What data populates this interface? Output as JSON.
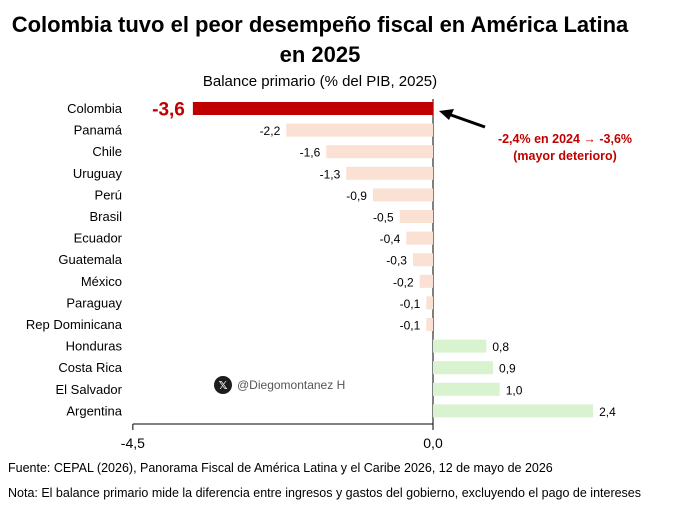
{
  "title": "Colombia tuvo el peor desempeño fiscal en América Latina en 2025",
  "subtitle": "Balance primario (% del PIB, 2025)",
  "chart_data": {
    "type": "bar",
    "orientation": "horizontal",
    "categories": [
      "Colombia",
      "Panamá",
      "Chile",
      "Uruguay",
      "Perú",
      "Brasil",
      "Ecuador",
      "Guatemala",
      "México",
      "Paraguay",
      "Rep Dominicana",
      "Honduras",
      "Costa Rica",
      "El Salvador",
      "Argentina"
    ],
    "values": [
      -3.6,
      -2.2,
      -1.6,
      -1.3,
      -0.9,
      -0.5,
      -0.4,
      -0.3,
      -0.2,
      -0.1,
      -0.1,
      0.8,
      0.9,
      1.0,
      2.4
    ],
    "value_labels": [
      "-3,6",
      "-2,2",
      "-1,6",
      "-1,3",
      "-0,9",
      "-0,5",
      "-0,4",
      "-0,3",
      "-0,2",
      "-0,1",
      "-0,1",
      "0,8",
      "0,9",
      "1,0",
      "2,4"
    ],
    "xlim": [
      -4.5,
      2.4
    ],
    "xticks": [
      -4.5,
      0.0
    ],
    "xtick_labels": [
      "-4,5",
      "0,0"
    ],
    "highlight_category": "Colombia",
    "annotation": {
      "line1": "-2,4% en 2024 → -3,6%",
      "line2": "(mayor deterioro)"
    },
    "colors": {
      "highlight": "#c00000",
      "negative": "#fbe0d4",
      "positive": "#d9f2d0",
      "annotation": "#c00000"
    }
  },
  "watermark": {
    "icon": "x-logo-icon",
    "handle": "@Diegomontanez H"
  },
  "footer": {
    "source": "Fuente: CEPAL (2026), Panorama Fiscal de América Latina y el Caribe 2026, 12 de mayo de 2026",
    "note": "Nota: El balance primario mide la diferencia entre ingresos y gastos del gobierno, excluyendo el pago de intereses"
  }
}
